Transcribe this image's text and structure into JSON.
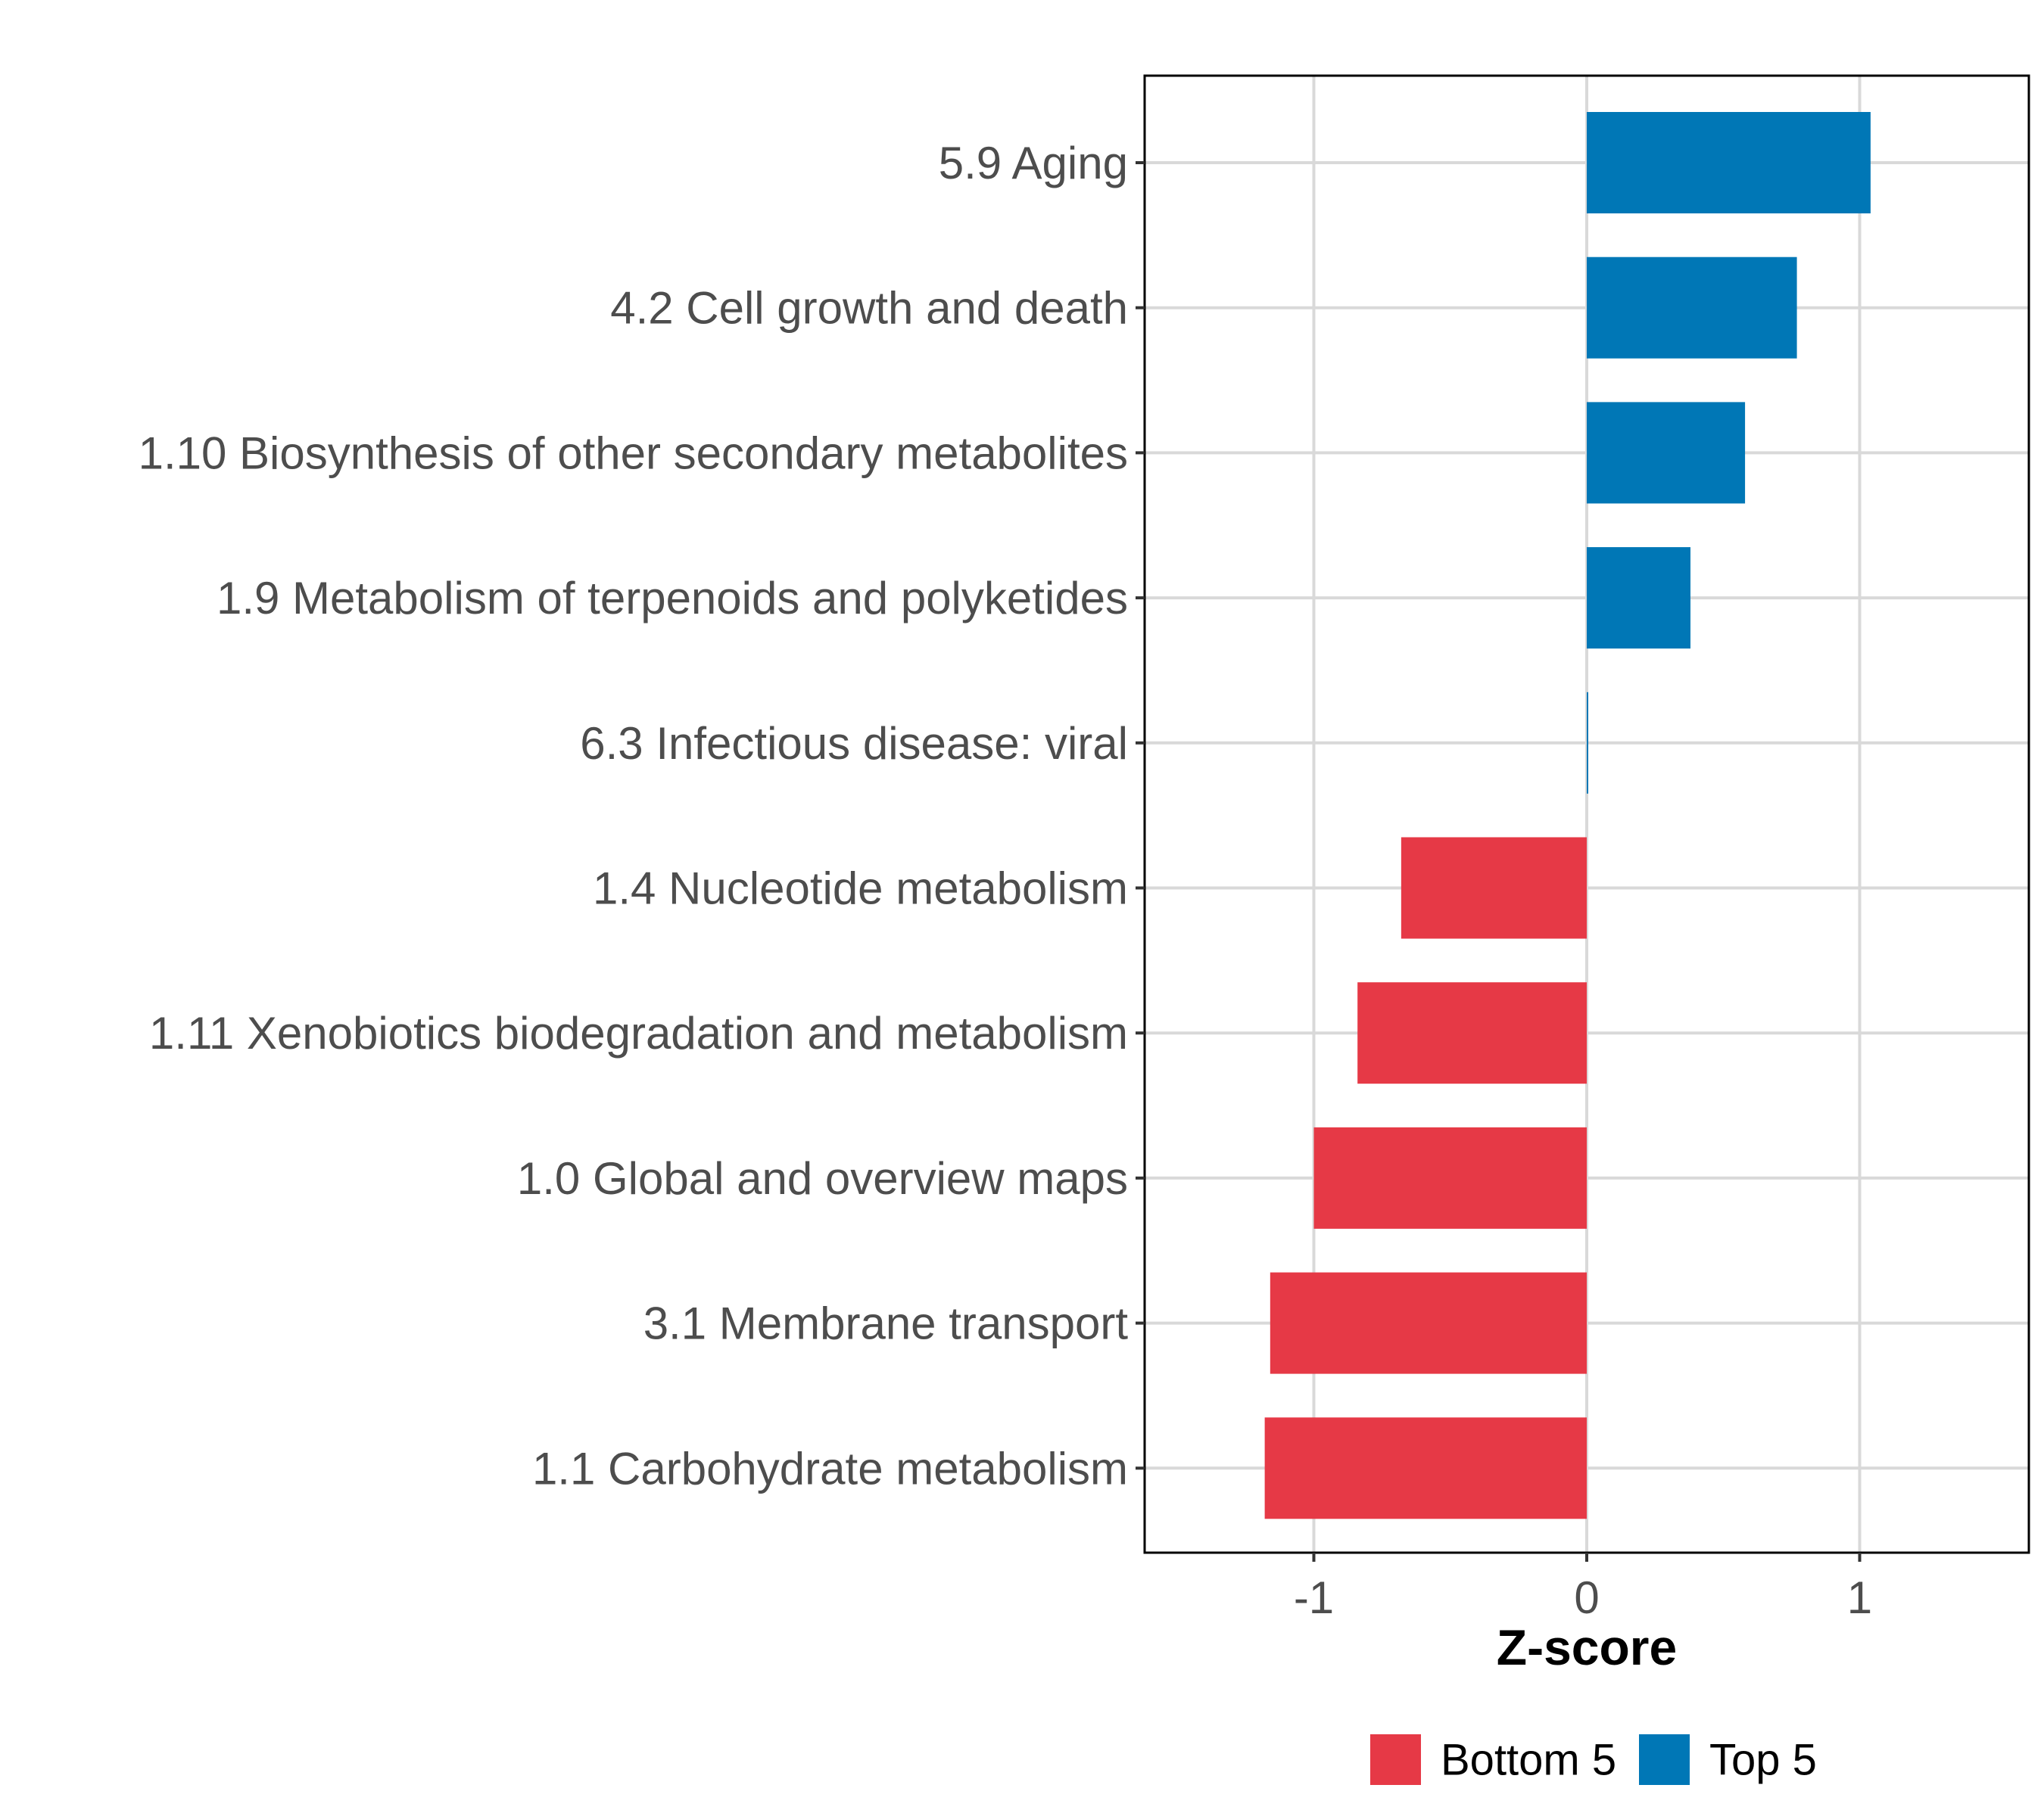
{
  "chart_data": {
    "type": "bar",
    "orientation": "horizontal",
    "title": "",
    "xlabel": "Z-score",
    "ylabel": "",
    "xlim": [
      -1.62,
      1.62
    ],
    "xticks": [
      -1,
      0,
      1
    ],
    "xtick_labels": [
      "-1",
      "0",
      "1"
    ],
    "grid": true,
    "legend_position": "bottom",
    "categories": [
      "5.9 Aging",
      "4.2 Cell growth and death",
      "1.10 Biosynthesis of other secondary metabolites",
      "1.9 Metabolism of terpenoids and polyketides",
      "6.3 Infectious disease: viral",
      "1.4 Nucleotide metabolism",
      "1.11 Xenobiotics biodegradation and metabolism",
      "1.0 Global and overview maps",
      "3.1 Membrane transport",
      "1.1 Carbohydrate metabolism"
    ],
    "values": [
      1.04,
      0.77,
      0.58,
      0.38,
      0.005,
      -0.68,
      -0.84,
      -1.0,
      -1.16,
      -1.18
    ],
    "groups": [
      "Top 5",
      "Top 5",
      "Top 5",
      "Top 5",
      "Top 5",
      "Bottom 5",
      "Bottom 5",
      "Bottom 5",
      "Bottom 5",
      "Bottom 5"
    ],
    "legend": [
      {
        "name": "Bottom 5",
        "color": "#E63946"
      },
      {
        "name": "Top 5",
        "color": "#0077B6"
      }
    ]
  },
  "colors": {
    "Top 5": "#0077B6",
    "Bottom 5": "#E63946",
    "grid": "#d9d9d9",
    "panel_border": "#000000"
  }
}
